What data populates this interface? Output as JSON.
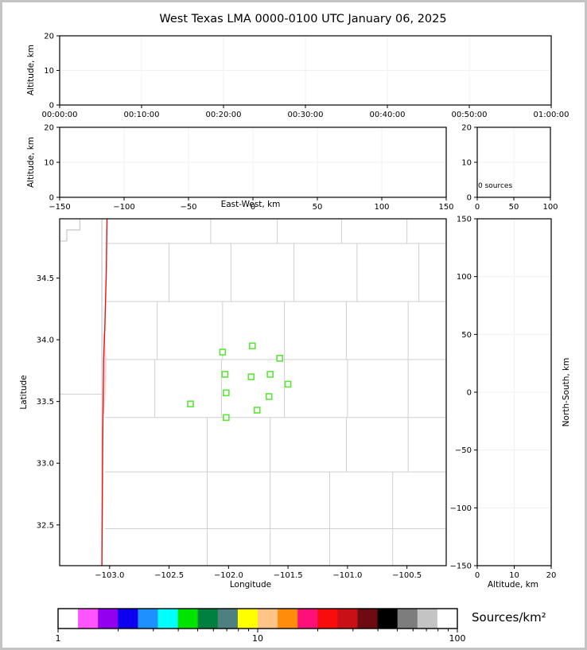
{
  "title": "West Texas LMA 0000-0100 UTC January 06, 2025",
  "labels": {
    "altitude_km": "Altitude, km",
    "east_west_km": "East-West, km",
    "latitude": "Latitude",
    "longitude": "Longitude",
    "north_south_km": "North-South, km",
    "zero_sources": "0 sources",
    "sources_per_km2": "Sources/km²"
  },
  "colors": {
    "station_green": "#5be63a",
    "highway_red": "#e81212",
    "highway_shadow": "#ffb4b4",
    "county_line": "#cfcfcf",
    "state_line": "#c8c8c8",
    "grid": "#f0f0f0",
    "frame": "#000000",
    "page_border": "#c4c4c4"
  },
  "chart_data": [
    {
      "id": "time_height",
      "type": "scatter",
      "xlim": [
        0,
        60
      ],
      "xticks": [
        0,
        10,
        20,
        30,
        40,
        50,
        60
      ],
      "xtick_labels": [
        "00:00:00",
        "00:10:00",
        "00:20:00",
        "00:30:00",
        "00:40:00",
        "00:50:00",
        "01:00:00"
      ],
      "ylim": [
        0,
        20
      ],
      "yticks": [
        0,
        10,
        20
      ],
      "ytick_labels": [
        "0",
        "10",
        "20"
      ],
      "points": []
    },
    {
      "id": "ew_height",
      "type": "scatter",
      "xlim": [
        -150,
        150
      ],
      "xticks": [
        -150,
        -100,
        -50,
        0,
        50,
        100,
        150
      ],
      "xtick_labels": [
        "−150",
        "−100",
        "−50",
        "0",
        "50",
        "100",
        "150"
      ],
      "ylim": [
        0,
        20
      ],
      "yticks": [
        0,
        10,
        20
      ],
      "ytick_labels": [
        "0",
        "10",
        "20"
      ],
      "points": []
    },
    {
      "id": "altitude_histogram",
      "type": "scatter",
      "xlim": [
        0,
        100
      ],
      "xticks": [
        0,
        50,
        100
      ],
      "xtick_labels": [
        "0",
        "50",
        "100"
      ],
      "ylim": [
        0,
        20
      ],
      "yticks": [
        0,
        10,
        20
      ],
      "ytick_labels": [
        "0",
        "10",
        "20"
      ],
      "annotation": "0 sources",
      "points": []
    },
    {
      "id": "plan_view_map",
      "type": "scatter",
      "xlim": [
        -103.42,
        -100.17
      ],
      "xticks": [
        -103.0,
        -102.5,
        -102.0,
        -101.5,
        -101.0,
        -100.5
      ],
      "xtick_labels": [
        "−103.0",
        "−102.5",
        "−102.0",
        "−101.5",
        "−101.0",
        "−100.5"
      ],
      "ylim": [
        32.17,
        34.98
      ],
      "yticks": [
        32.5,
        33.0,
        33.5,
        34.0,
        34.5
      ],
      "ytick_labels": [
        "32.5",
        "33.0",
        "33.5",
        "34.0",
        "34.5"
      ],
      "points": [],
      "stations": [
        {
          "lon": -101.8,
          "lat": 33.95
        },
        {
          "lon": -102.05,
          "lat": 33.9
        },
        {
          "lon": -101.57,
          "lat": 33.85
        },
        {
          "lon": -102.03,
          "lat": 33.72
        },
        {
          "lon": -101.81,
          "lat": 33.7
        },
        {
          "lon": -101.65,
          "lat": 33.72
        },
        {
          "lon": -101.5,
          "lat": 33.64
        },
        {
          "lon": -102.02,
          "lat": 33.57
        },
        {
          "lon": -101.66,
          "lat": 33.54
        },
        {
          "lon": -102.32,
          "lat": 33.48
        },
        {
          "lon": -101.76,
          "lat": 33.43
        },
        {
          "lon": -102.02,
          "lat": 33.37
        }
      ],
      "county_lines": {
        "horizontal": [
          {
            "lat": 34.78,
            "lon0": -103.04,
            "lon1": -100.17
          },
          {
            "lat": 34.31,
            "lon0": -103.04,
            "lon1": -100.17
          },
          {
            "lat": 33.84,
            "lon0": -103.04,
            "lon1": -100.17
          },
          {
            "lat": 33.37,
            "lon0": -103.04,
            "lon1": -100.17
          },
          {
            "lat": 32.93,
            "lon0": -103.04,
            "lon1": -100.17
          },
          {
            "lat": 32.47,
            "lon0": -103.04,
            "lon1": -100.17
          },
          {
            "lat": 33.56,
            "lon0": -103.42,
            "lon1": -103.06
          }
        ],
        "vertical": [
          {
            "lon": -102.15,
            "lat0": 34.78,
            "lat1": 34.98
          },
          {
            "lon": -101.59,
            "lat0": 34.78,
            "lat1": 34.98
          },
          {
            "lon": -101.05,
            "lat0": 34.78,
            "lat1": 34.98
          },
          {
            "lon": -100.5,
            "lat0": 34.78,
            "lat1": 34.98
          },
          {
            "lon": -102.5,
            "lat0": 34.31,
            "lat1": 34.78
          },
          {
            "lon": -101.98,
            "lat0": 34.31,
            "lat1": 34.78
          },
          {
            "lon": -101.45,
            "lat0": 34.31,
            "lat1": 34.78
          },
          {
            "lon": -100.92,
            "lat0": 34.31,
            "lat1": 34.78
          },
          {
            "lon": -100.4,
            "lat0": 34.31,
            "lat1": 34.78
          },
          {
            "lon": -102.6,
            "lat0": 33.84,
            "lat1": 34.31
          },
          {
            "lon": -102.05,
            "lat0": 33.84,
            "lat1": 34.31
          },
          {
            "lon": -101.53,
            "lat0": 33.84,
            "lat1": 34.31
          },
          {
            "lon": -101.01,
            "lat0": 33.84,
            "lat1": 34.31
          },
          {
            "lon": -100.49,
            "lat0": 33.84,
            "lat1": 34.31
          },
          {
            "lon": -102.62,
            "lat0": 33.37,
            "lat1": 33.84
          },
          {
            "lon": -102.06,
            "lat0": 33.37,
            "lat1": 33.84
          },
          {
            "lon": -101.53,
            "lat0": 33.37,
            "lat1": 33.84
          },
          {
            "lon": -101.0,
            "lat0": 33.37,
            "lat1": 33.84
          },
          {
            "lon": -100.49,
            "lat0": 33.37,
            "lat1": 33.84
          },
          {
            "lon": -102.18,
            "lat0": 32.93,
            "lat1": 33.37
          },
          {
            "lon": -101.65,
            "lat0": 32.93,
            "lat1": 33.37
          },
          {
            "lon": -101.01,
            "lat0": 32.93,
            "lat1": 33.37
          },
          {
            "lon": -100.49,
            "lat0": 32.93,
            "lat1": 33.37
          },
          {
            "lon": -102.18,
            "lat0": 32.17,
            "lat1": 32.93
          },
          {
            "lon": -101.65,
            "lat0": 32.17,
            "lat1": 32.93
          },
          {
            "lon": -101.15,
            "lat0": 32.17,
            "lat1": 32.93
          },
          {
            "lon": -100.62,
            "lat0": 32.17,
            "lat1": 32.93
          }
        ]
      },
      "state_line_lon": -103.065,
      "border_step": [
        [
          -103.25,
          34.98
        ],
        [
          -103.25,
          34.89
        ],
        [
          -103.36,
          34.89
        ],
        [
          -103.36,
          34.8
        ],
        [
          -103.42,
          34.8
        ]
      ],
      "highway": [
        [
          -103.022,
          34.98
        ],
        [
          -103.028,
          34.55
        ],
        [
          -103.04,
          34.1
        ],
        [
          -103.05,
          33.85
        ],
        [
          -103.053,
          33.6
        ],
        [
          -103.058,
          33.2
        ],
        [
          -103.062,
          32.6
        ],
        [
          -103.065,
          32.17
        ]
      ],
      "highway_shadow": [
        [
          -103.048,
          34.05
        ],
        [
          -103.034,
          33.8
        ],
        [
          -103.038,
          33.62
        ],
        [
          -103.052,
          33.4
        ]
      ]
    },
    {
      "id": "ns_height",
      "type": "scatter",
      "xlim": [
        0,
        20
      ],
      "xticks": [
        0,
        10,
        20
      ],
      "xtick_labels": [
        "0",
        "10",
        "20"
      ],
      "ylim": [
        -150,
        150
      ],
      "yticks": [
        -150,
        -100,
        -50,
        0,
        50,
        100,
        150
      ],
      "ytick_labels": [
        "−150",
        "−100",
        "−50",
        "0",
        "50",
        "100",
        "150"
      ],
      "points": []
    },
    {
      "id": "colorbar",
      "type": "heatmap",
      "scale": "log",
      "lim": [
        1,
        100
      ],
      "ticks": [
        1,
        10,
        100
      ],
      "tick_labels": [
        "1",
        "10",
        "100"
      ],
      "minor_ticks": [
        2,
        3,
        4,
        5,
        6,
        7,
        8,
        9,
        20,
        30,
        40,
        50,
        60,
        70,
        80,
        90
      ],
      "label": "Sources/km²",
      "segment_colors": [
        "#ffffff",
        "#ff55ff",
        "#9300f0",
        "#0d00ee",
        "#1e90ff",
        "#00ffff",
        "#00e400",
        "#008040",
        "#4e8080",
        "#ffff00",
        "#ffc488",
        "#ff8c0a",
        "#ff0f78",
        "#f80c0c",
        "#c81016",
        "#6d0a12",
        "#000000",
        "#7d7d7d",
        "#c4c4c4",
        "#ffffff"
      ]
    }
  ]
}
